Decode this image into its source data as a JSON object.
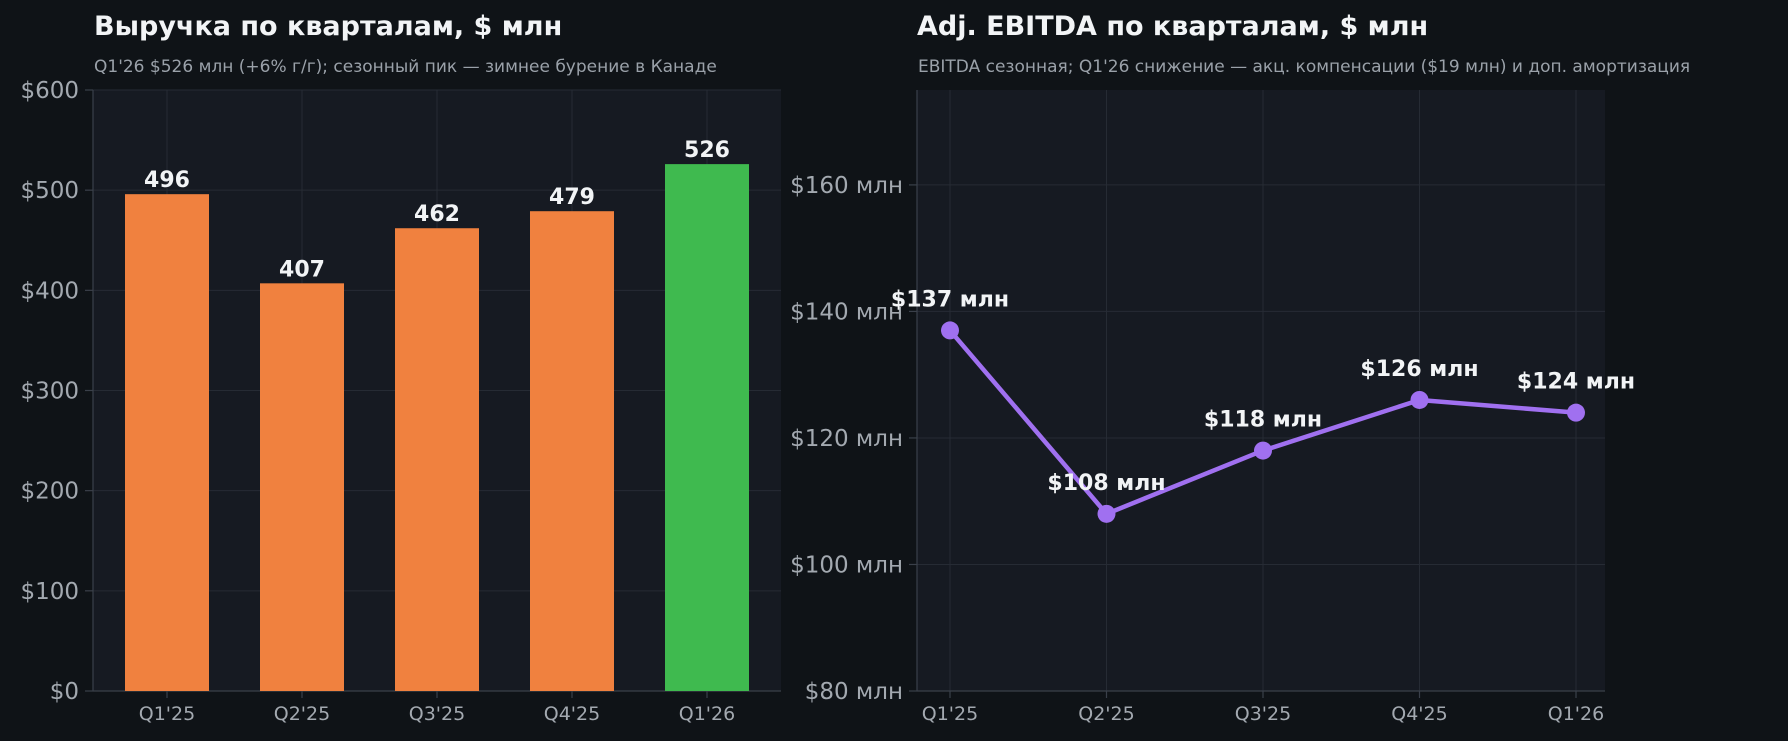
{
  "chart_data": [
    {
      "type": "bar",
      "title": "Выручка по кварталам, $ млн",
      "subtitle": "Q1'26 $526 млн (+6% г/г); сезонный пик — зимнее бурение в Канаде",
      "categories": [
        "Q1'25",
        "Q2'25",
        "Q3'25",
        "Q4'25",
        "Q1'26"
      ],
      "values": [
        496,
        407,
        462,
        479,
        526
      ],
      "value_labels": [
        "496",
        "407",
        "462",
        "479",
        "526"
      ],
      "colors": [
        "#f0813f",
        "#f0813f",
        "#f0813f",
        "#f0813f",
        "#3fba4f"
      ],
      "ylim": [
        0,
        600
      ],
      "yticks": [
        0,
        100,
        200,
        300,
        400,
        500,
        600
      ],
      "ytick_labels": [
        "$0",
        "$100",
        "$200",
        "$300",
        "$400",
        "$500",
        "$600"
      ],
      "xlabel": "",
      "ylabel": "",
      "grid": true
    },
    {
      "type": "line",
      "title": "Adj. EBITDA по кварталам, $ млн",
      "subtitle": "EBITDA сезонная; Q1'26 снижение — акц. компенсации ($19 млн) и доп. амортизация",
      "categories": [
        "Q1'25",
        "Q2'25",
        "Q3'25",
        "Q4'25",
        "Q1'26"
      ],
      "values": [
        137,
        108,
        118,
        126,
        124
      ],
      "value_labels": [
        "$137 млн",
        "$108 млн",
        "$118 млн",
        "$126 млн",
        "$124 млн"
      ],
      "color": "#a070f0",
      "ylim": [
        80,
        175
      ],
      "yticks": [
        80,
        100,
        120,
        140,
        160
      ],
      "ytick_labels": [
        "$80 млн",
        "$100 млн",
        "$120 млн",
        "$140 млн",
        "$160 млн"
      ],
      "xlabel": "",
      "ylabel": "",
      "grid": true
    }
  ],
  "colors": {
    "background": "#0f1317",
    "plot_background": "#161a22",
    "grid": "#262b34",
    "axis": "#3a404a"
  }
}
